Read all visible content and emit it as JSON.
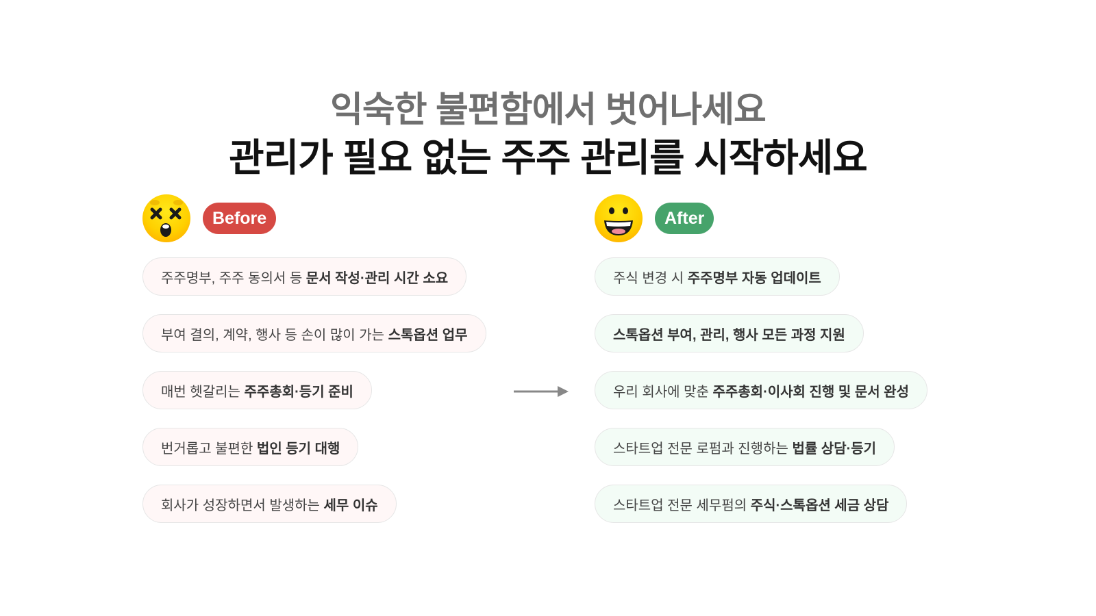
{
  "header": {
    "subtitle": "익숙한 불편함에서 벗어나세요",
    "title": "관리가 필요 없는 주주 관리를 시작하세요"
  },
  "before": {
    "badge": "Before",
    "badge_color": "#d64943",
    "emoji": "dizzy-face-icon",
    "items": [
      {
        "normal": "주주명부, 주주 동의서 등 ",
        "bold": "문서 작성·관리 시간 소요"
      },
      {
        "normal": "부여 결의, 계약, 행사 등 손이 많이 가는 ",
        "bold": "스톡옵션 업무"
      },
      {
        "normal": "매번 헷갈리는 ",
        "bold": "주주총회·등기 준비"
      },
      {
        "normal": "번거롭고 불편한 ",
        "bold": "법인 등기 대행"
      },
      {
        "normal": "회사가 성장하면서 발생하는 ",
        "bold": "세무 이슈"
      }
    ]
  },
  "after": {
    "badge": "After",
    "badge_color": "#46a36b",
    "emoji": "grinning-face-icon",
    "items": [
      {
        "normal": "주식 변경 시 ",
        "bold": "주주명부 자동 업데이트"
      },
      {
        "normal": "",
        "bold": "스톡옵션 부여, 관리, 행사 모든 과정 지원"
      },
      {
        "normal": "우리 회사에 맞춘 ",
        "bold": "주주총회·이사회 진행 및 문서 완성"
      },
      {
        "normal": "스타트업 전문 로펌과 진행하는 ",
        "bold": "법률 상담·등기"
      },
      {
        "normal": "스타트업 전문 세무펌의 ",
        "bold": "주식·스톡옵션 세금 상담"
      }
    ]
  }
}
